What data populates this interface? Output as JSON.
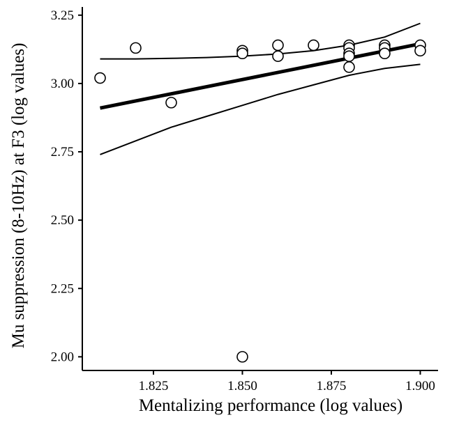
{
  "chart_data": {
    "type": "scatter",
    "title": "",
    "xlabel": "Mentalizing performance (log values)",
    "ylabel": "Mu suppression (8-10Hz) at F3 (log values)",
    "xlim": [
      1.805,
      1.905
    ],
    "ylim": [
      1.95,
      3.28
    ],
    "x_ticks": [
      1.825,
      1.85,
      1.875,
      1.9
    ],
    "x_tick_labels": [
      "1.825",
      "1.850",
      "1.875",
      "1.900"
    ],
    "y_ticks": [
      2.0,
      2.25,
      2.5,
      2.75,
      3.0,
      3.25
    ],
    "y_tick_labels": [
      "2.00",
      "2.25",
      "2.50",
      "2.75",
      "3.00",
      "3.25"
    ],
    "grid": false,
    "points": [
      {
        "x": 1.81,
        "y": 3.02
      },
      {
        "x": 1.82,
        "y": 3.13
      },
      {
        "x": 1.83,
        "y": 2.93
      },
      {
        "x": 1.85,
        "y": 3.12
      },
      {
        "x": 1.85,
        "y": 3.11
      },
      {
        "x": 1.85,
        "y": 2.0
      },
      {
        "x": 1.86,
        "y": 3.14
      },
      {
        "x": 1.86,
        "y": 3.1
      },
      {
        "x": 1.87,
        "y": 3.14
      },
      {
        "x": 1.88,
        "y": 3.14
      },
      {
        "x": 1.88,
        "y": 3.13
      },
      {
        "x": 1.88,
        "y": 3.11
      },
      {
        "x": 1.88,
        "y": 3.1
      },
      {
        "x": 1.88,
        "y": 3.06
      },
      {
        "x": 1.89,
        "y": 3.14
      },
      {
        "x": 1.89,
        "y": 3.13
      },
      {
        "x": 1.89,
        "y": 3.11
      },
      {
        "x": 1.9,
        "y": 3.14
      },
      {
        "x": 1.9,
        "y": 3.12
      }
    ],
    "fit_line": {
      "x": [
        1.81,
        1.9
      ],
      "y": [
        2.91,
        3.145
      ]
    },
    "ci_upper": {
      "x": [
        1.81,
        1.82,
        1.83,
        1.84,
        1.85,
        1.86,
        1.87,
        1.88,
        1.89,
        1.9
      ],
      "y": [
        3.09,
        3.09,
        3.092,
        3.095,
        3.1,
        3.108,
        3.12,
        3.14,
        3.17,
        3.22
      ]
    },
    "ci_lower": {
      "x": [
        1.81,
        1.82,
        1.83,
        1.84,
        1.85,
        1.86,
        1.87,
        1.88,
        1.89,
        1.9
      ],
      "y": [
        2.74,
        2.79,
        2.84,
        2.88,
        2.92,
        2.96,
        2.995,
        3.03,
        3.055,
        3.07
      ]
    }
  }
}
